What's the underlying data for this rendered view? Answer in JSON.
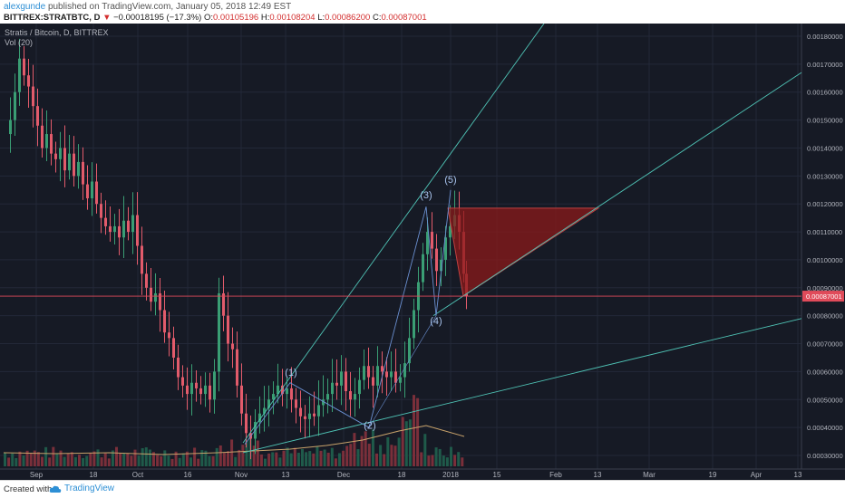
{
  "header": {
    "user": "alexgunde",
    "published": "published on TradingView.com, January 05, 2018 12:49 EST",
    "symbol": "BITTREX:STRATBTC, D",
    "change_arrow": "▼",
    "change": "−0.00018195 (−17.3%)",
    "o_label": "O:",
    "o_value": "0.00105196",
    "h_label": "H:",
    "h_value": "0.00108204",
    "l_label": "L:",
    "l_value": "0.00086200",
    "c_label": "C:",
    "c_value": "0.00087001"
  },
  "chart_legend": {
    "title": "Stratis / Bitcoin, D, BITTREX",
    "volume": "Vol (20)"
  },
  "price_axis": {
    "ticks": [
      "0.00180000",
      "0.00170000",
      "0.00160000",
      "0.00150000",
      "0.00140000",
      "0.00130000",
      "0.00120000",
      "0.00110000",
      "0.00100000",
      "0.00090000",
      "0.00080000",
      "0.00070000",
      "0.00060000",
      "0.00050000",
      "0.00040000",
      "0.00030000"
    ],
    "last_price": "0.00087001"
  },
  "time_axis": {
    "ticks": [
      "Sep",
      "18",
      "Oct",
      "16",
      "Nov",
      "13",
      "Dec",
      "18",
      "2018",
      "15",
      "Feb",
      "13",
      "Mar",
      "19",
      "Apr",
      "13"
    ]
  },
  "wave_labels": [
    "(1)",
    "(2)",
    "(3)",
    "(4)",
    "(5)"
  ],
  "footer": {
    "created_with": "Created with",
    "brand": "TradingView"
  },
  "colors": {
    "background": "#161a25",
    "up_candle": "#3a9e74",
    "down_candle": "#e25b6b",
    "trendline": "#4fc3b5",
    "triangle_fill": "#8b1a1a",
    "last_price": "#e04b5a"
  }
}
